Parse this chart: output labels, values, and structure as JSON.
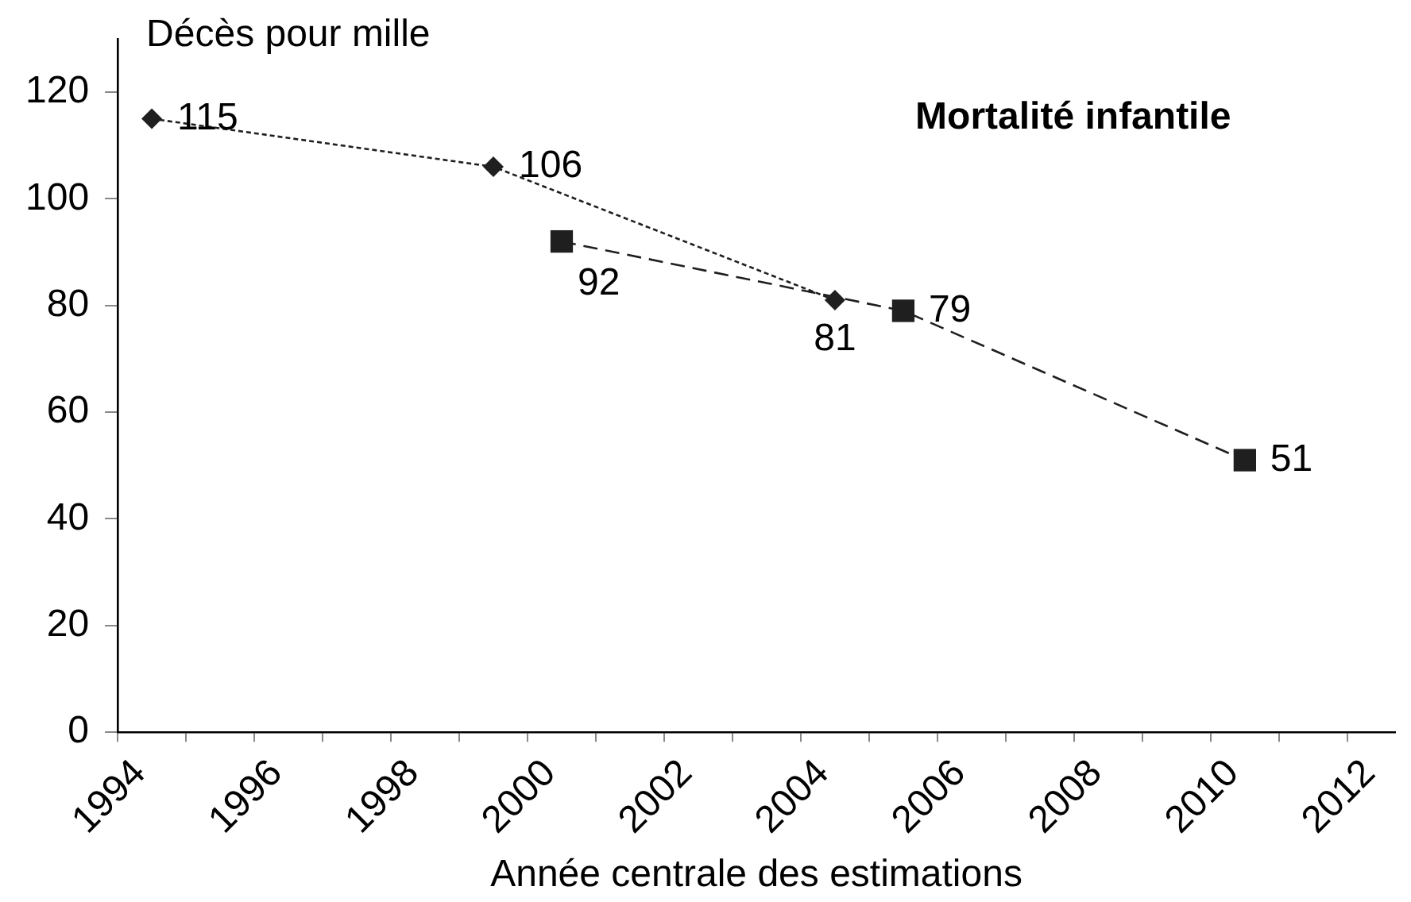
{
  "chart_data": {
    "type": "line",
    "title": "Mortalité infantile",
    "ylabel": "Décès pour mille",
    "xlabel": "Année centrale des estimations",
    "xlim": [
      1994,
      2012.7
    ],
    "xticks": [
      1994,
      {
        "value": 1995,
        "label": null
      },
      1996,
      {
        "value": 1997,
        "label": null
      },
      1998,
      {
        "value": 1999,
        "label": null
      },
      2000,
      {
        "value": 2001,
        "label": null
      },
      2002,
      {
        "value": 2003,
        "label": null
      },
      2004,
      {
        "value": 2005,
        "label": null
      },
      2006,
      {
        "value": 2007,
        "label": null
      },
      2008,
      {
        "value": 2009,
        "label": null
      },
      2010,
      {
        "value": 2011,
        "label": null
      },
      2012
    ],
    "ylim": [
      0,
      130
    ],
    "yticks": [
      0,
      20,
      40,
      60,
      80,
      100,
      120
    ],
    "grid": false,
    "data_labels": true,
    "series": [
      {
        "color": "#1f1f1f",
        "marker": "diamond",
        "line_style": "dotted",
        "x": [
          1994.5,
          1999.5,
          2004.5
        ],
        "values": [
          115,
          106,
          81
        ]
      },
      {
        "color": "#1f1f1f",
        "marker": "square",
        "line_style": "dashed",
        "x": [
          2000.5,
          2005.5,
          2010.5
        ],
        "values": [
          92,
          79,
          51
        ]
      }
    ]
  }
}
